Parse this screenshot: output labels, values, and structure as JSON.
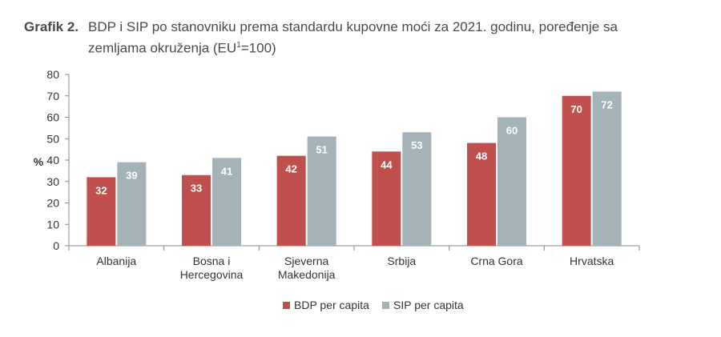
{
  "title": {
    "label": "Grafik 2.",
    "line1": "BDP i SIP po stanovniku prema standardu kupovne moći za 2021. godinu, poređenje sa",
    "line2_prefix": "zemljama okruženja (EU",
    "line2_sup": "1",
    "line2_suffix": "=100)"
  },
  "chart_data": {
    "type": "bar",
    "categories": [
      [
        "Albanija"
      ],
      [
        "Bosna i",
        "Hercegovina"
      ],
      [
        "Sjeverna",
        "Makedonija"
      ],
      [
        "Srbija"
      ],
      [
        "Crna Gora"
      ],
      [
        "Hrvatska"
      ]
    ],
    "series": [
      {
        "name": "BDP per capita",
        "color": "#c0504d",
        "values": [
          32,
          33,
          42,
          44,
          48,
          70
        ]
      },
      {
        "name": "SIP per capita",
        "color": "#a3b3b8",
        "values": [
          39,
          41,
          51,
          53,
          60,
          72
        ]
      }
    ],
    "ylabel": "%",
    "ylim": [
      0,
      80
    ],
    "yticks": [
      0,
      10,
      20,
      30,
      40,
      50,
      60,
      70,
      80
    ],
    "data_labels": true,
    "legend_position": "bottom",
    "grid": false
  }
}
